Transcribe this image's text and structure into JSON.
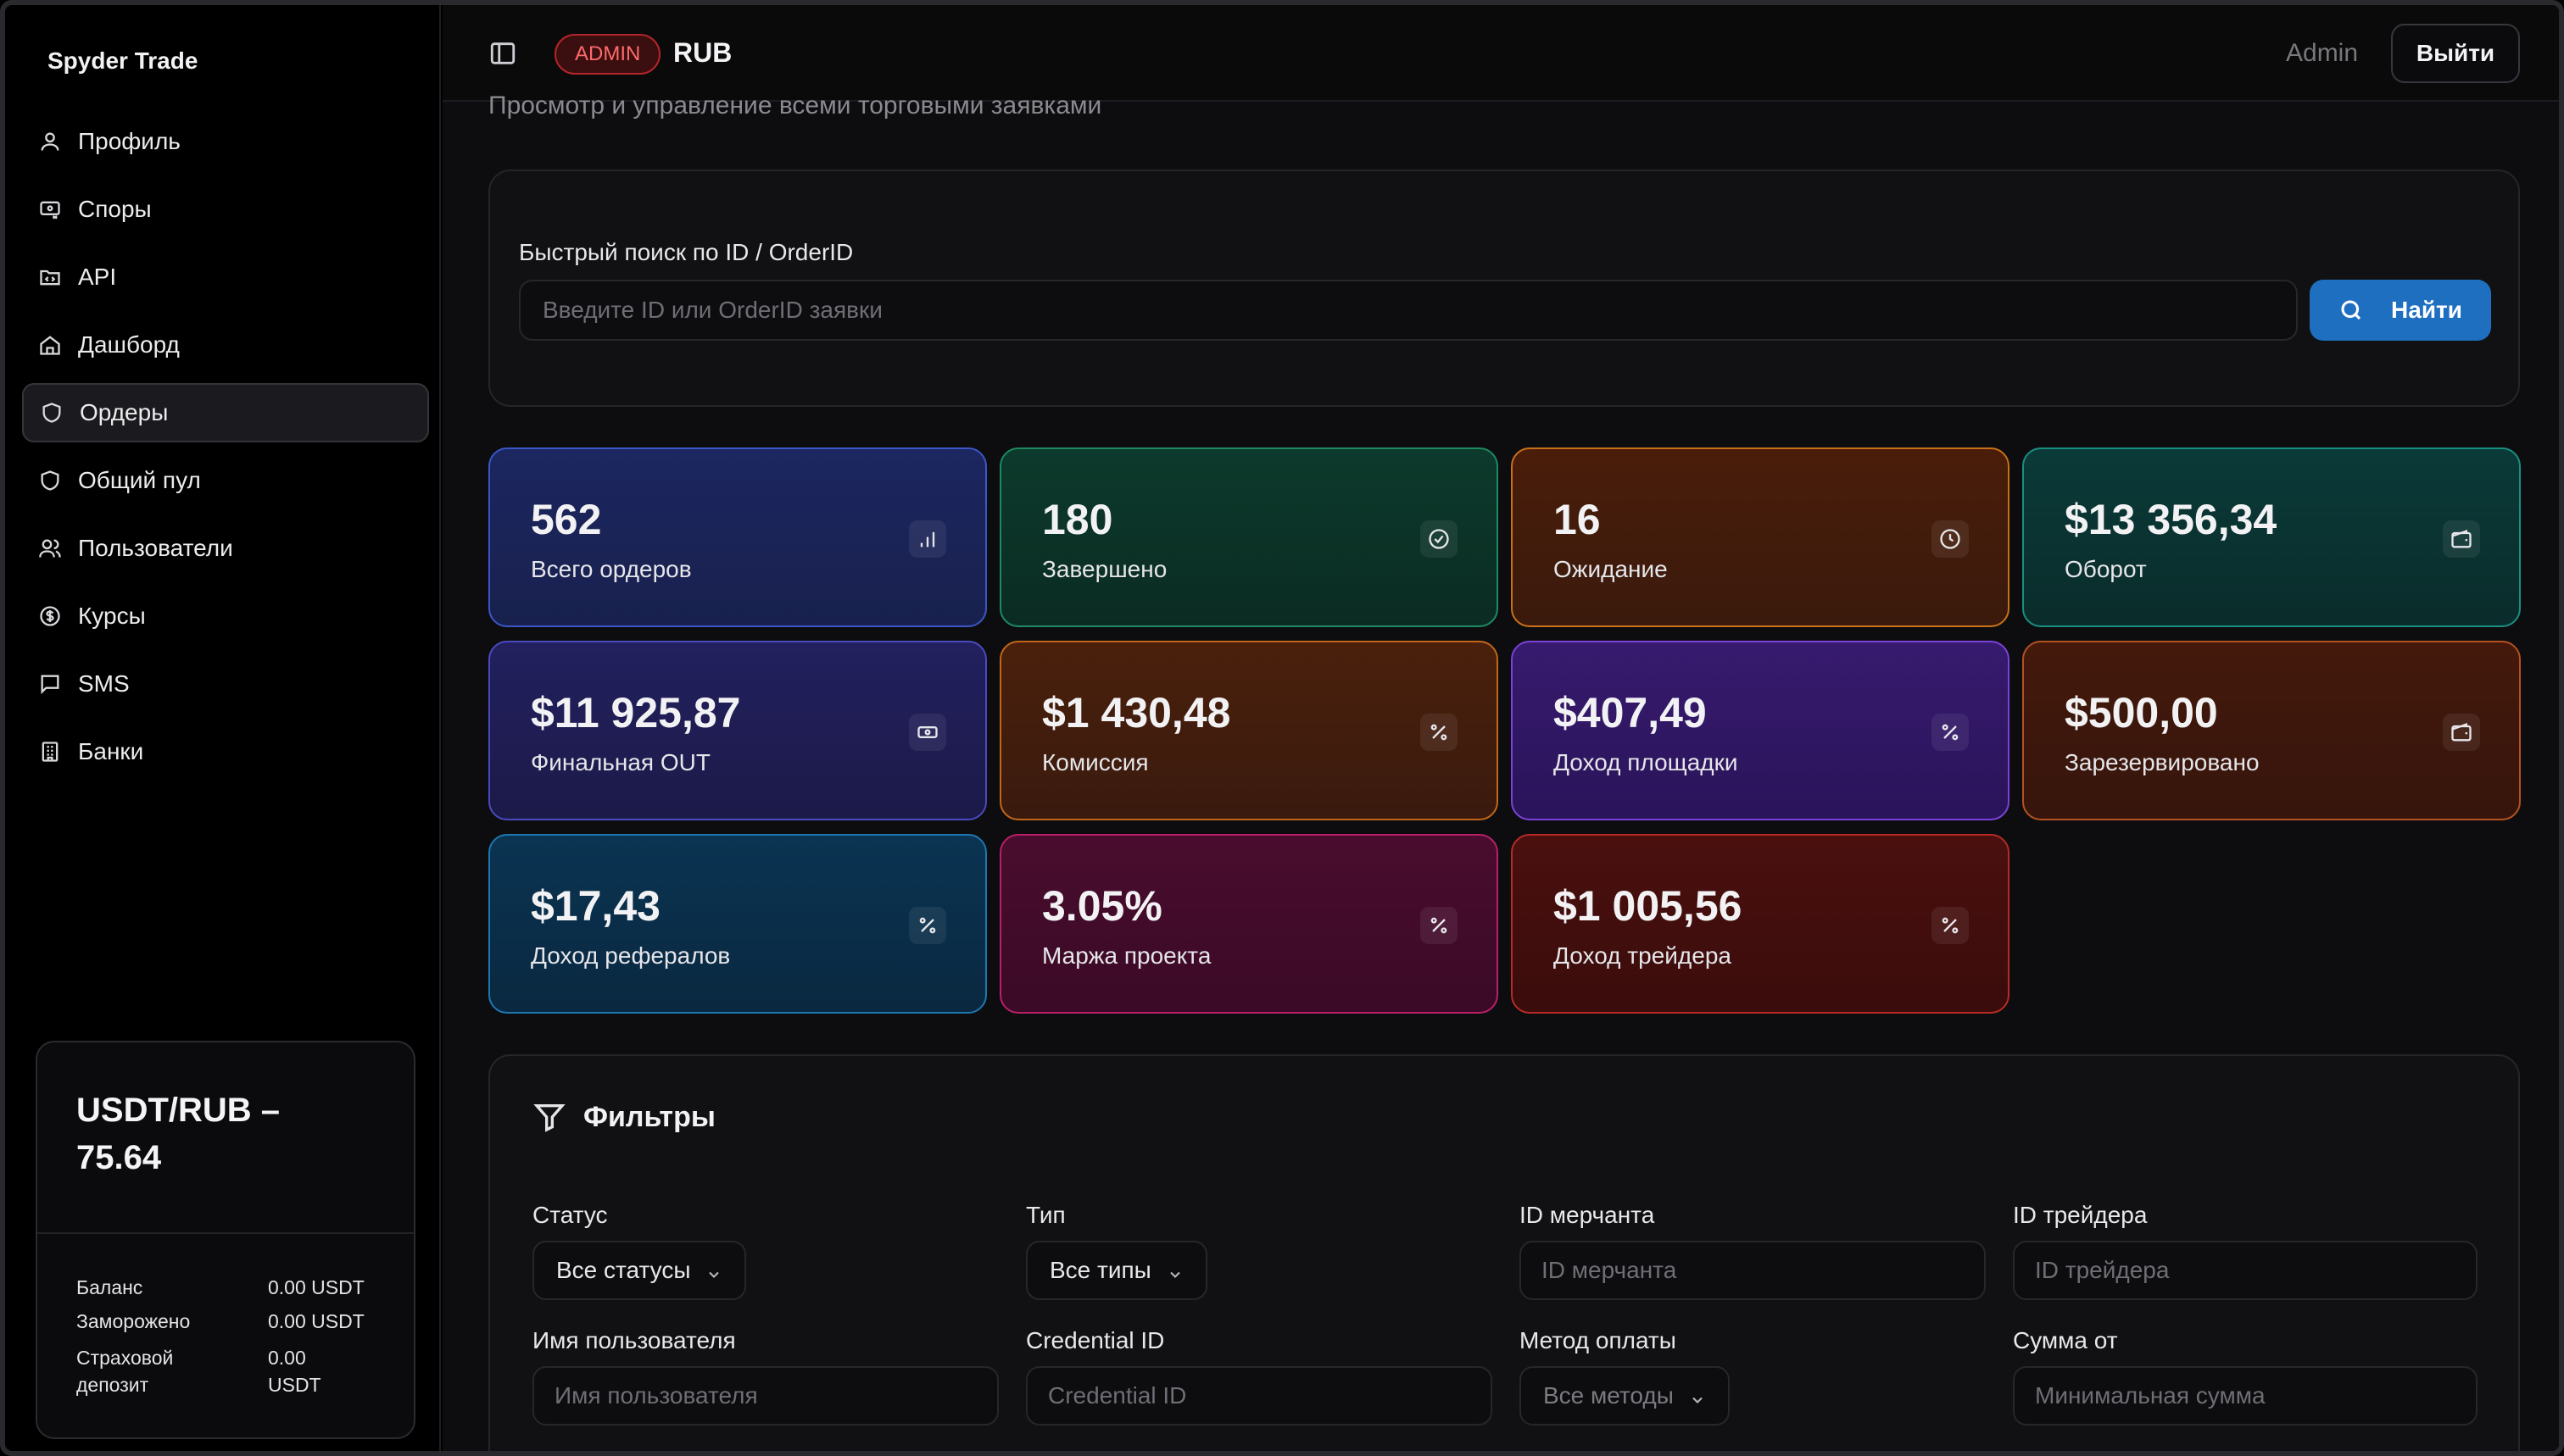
{
  "brand": "Spyder Trade",
  "sidebar": {
    "items": [
      {
        "label": "Профиль",
        "icon": "user-icon"
      },
      {
        "label": "Споры",
        "icon": "dispute-icon"
      },
      {
        "label": "API",
        "icon": "api-icon"
      },
      {
        "label": "Дашборд",
        "icon": "home-icon"
      },
      {
        "label": "Ордеры",
        "icon": "shield-icon",
        "active": true
      },
      {
        "label": "Общий пул",
        "icon": "shield-icon"
      },
      {
        "label": "Пользователи",
        "icon": "users-icon"
      },
      {
        "label": "Курсы",
        "icon": "dollar-circle-icon"
      },
      {
        "label": "SMS",
        "icon": "message-icon"
      },
      {
        "label": "Банки",
        "icon": "bank-icon"
      }
    ]
  },
  "rate_card": {
    "title": "USDT/RUB – 75.64",
    "balance_label": "Баланс",
    "balance_value": "0.00 USDT",
    "frozen_label": "Заморожено",
    "frozen_value": "0.00 USDT",
    "deposit_label": "Страховой депозит",
    "deposit_value": "0.00 USDT"
  },
  "header": {
    "badge": "ADMIN",
    "currency": "RUB",
    "user": "Admin",
    "logout_label": "Выйти"
  },
  "page": {
    "subtitle": "Просмотр и управление всеми торговыми заявками"
  },
  "search": {
    "label": "Быстрый поиск по ID / OrderID",
    "placeholder": "Введите ID или OrderID заявки",
    "button_label": "Найти"
  },
  "stats": [
    {
      "value": "562",
      "label": "Всего ордеров",
      "icon": "bar-chart-icon",
      "color": "#3a56c8"
    },
    {
      "value": "180",
      "label": "Завершено",
      "icon": "check-circle-icon",
      "color": "#1d8a62"
    },
    {
      "value": "16",
      "label": "Ожидание",
      "icon": "clock-icon",
      "color": "#c87118"
    },
    {
      "value": "$13 356,34",
      "label": "Оборот",
      "icon": "wallet-icon",
      "color": "#1a8f80"
    },
    {
      "value": "$11 925,87",
      "label": "Финальная OUT",
      "icon": "banknote-icon",
      "color": "#4a4ac0"
    },
    {
      "value": "$1 430,48",
      "label": "Комиссия",
      "icon": "percent-icon",
      "color": "#c2661a"
    },
    {
      "value": "$407,49",
      "label": "Доход площадки",
      "icon": "percent-icon",
      "color": "#7a42d8"
    },
    {
      "value": "$500,00",
      "label": "Зарезервировано",
      "icon": "wallet-icon",
      "color": "#b35220"
    },
    {
      "value": "$17,43",
      "label": "Доход рефералов",
      "icon": "percent-icon",
      "color": "#1d78b0"
    },
    {
      "value": "3.05%",
      "label": "Маржа проекта",
      "icon": "percent-icon",
      "color": "#b8206a"
    },
    {
      "value": "$1 005,56",
      "label": "Доход трейдера",
      "icon": "percent-icon",
      "color": "#b82a26"
    }
  ],
  "filters": {
    "title": "Фильтры",
    "status_label": "Статус",
    "status_value": "Все статусы",
    "type_label": "Тип",
    "type_value": "Все типы",
    "merchant_label": "ID мерчанта",
    "merchant_placeholder": "ID мерчанта",
    "trader_label": "ID трейдера",
    "trader_placeholder": "ID трейдера",
    "username_label": "Имя пользователя",
    "username_placeholder": "Имя пользователя",
    "credential_label": "Credential ID",
    "credential_placeholder": "Credential ID",
    "method_label": "Метод оплаты",
    "method_value": "Все методы",
    "amount_label": "Сумма от",
    "amount_placeholder": "Минимальная сумма"
  }
}
